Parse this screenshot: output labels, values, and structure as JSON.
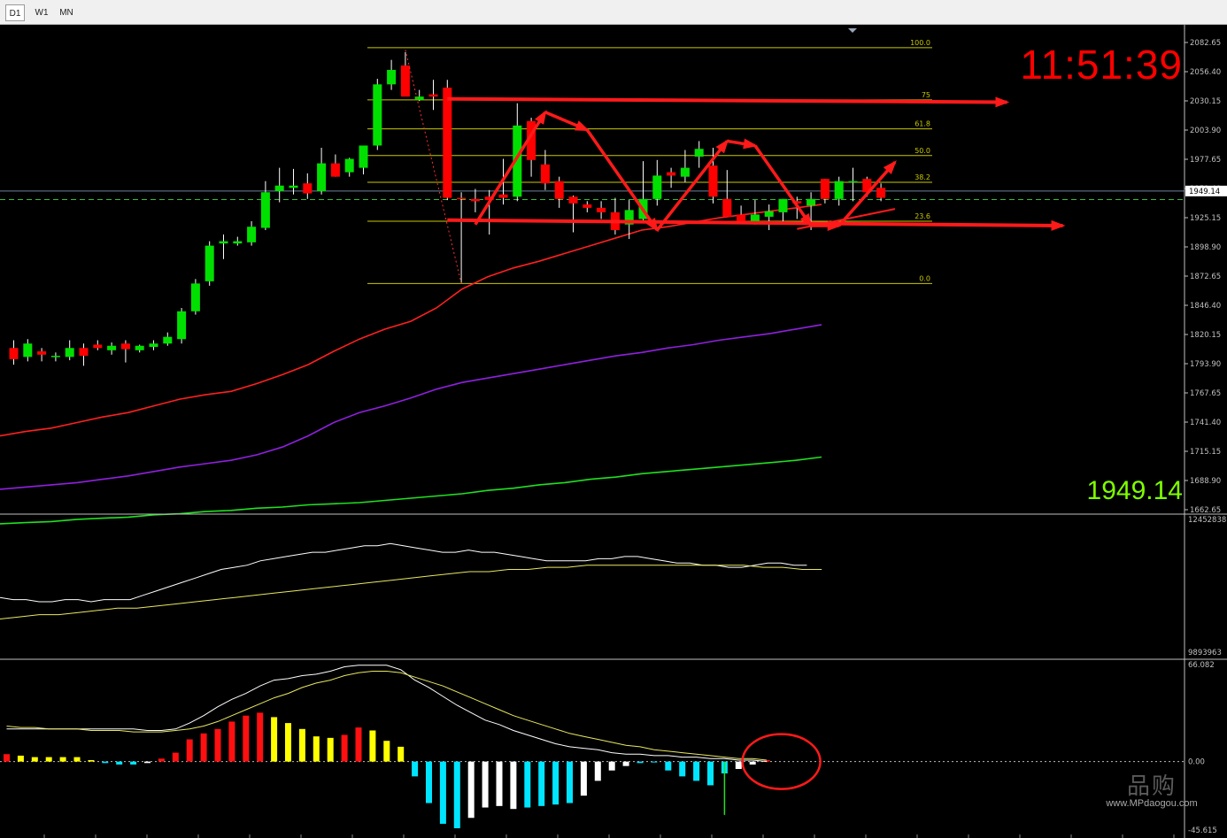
{
  "timeframe_tabs": [
    "D1",
    "W1",
    "MN"
  ],
  "active_tab": "D1",
  "clock": "11:51:39",
  "big_price": "1949.14",
  "watermark": {
    "logo": "品购",
    "url": "www.MPdaogou.com"
  },
  "colors": {
    "background": "#000000",
    "bull": "#00e000",
    "bear": "#ff0000",
    "fib": "#c8c800",
    "ma_short": "#ff2020",
    "ma_mid": "#9020e0",
    "ma_long": "#20e020",
    "annotation": "#ff1a1a",
    "macd_red": "#ff1010",
    "macd_yellow": "#ffff00",
    "macd_cyan": "#00e5ff",
    "macd_white": "#ffffff",
    "grid_text": "#c0c0c0"
  },
  "chart_data": [
    {
      "type": "candlestick",
      "price_axis_labels": [
        "2082.65",
        "2056.40",
        "2030.15",
        "2003.90",
        "1977.65",
        "1951.40",
        "1925.15",
        "1898.90",
        "1872.65",
        "1846.40",
        "1820.15",
        "1793.90",
        "1767.65",
        "1741.40",
        "1715.15",
        "1688.90",
        "1662.65"
      ],
      "ylim": [
        1662.65,
        2082.65
      ],
      "current_price": "1949.14",
      "current_price_value": 1949.14,
      "bid_line": 1941.5,
      "candles": [
        [
          1808,
          1815,
          1793,
          1798
        ],
        [
          1800,
          1816,
          1796,
          1812
        ],
        [
          1805,
          1808,
          1796,
          1802
        ],
        [
          1800,
          1804,
          1796,
          1801
        ],
        [
          1800,
          1815,
          1797,
          1808
        ],
        [
          1808,
          1812,
          1792,
          1801
        ],
        [
          1811,
          1815,
          1806,
          1808
        ],
        [
          1806,
          1813,
          1802,
          1810
        ],
        [
          1812,
          1815,
          1795,
          1807
        ],
        [
          1806,
          1811,
          1804,
          1810
        ],
        [
          1809,
          1815,
          1806,
          1812
        ],
        [
          1812,
          1822,
          1810,
          1818
        ],
        [
          1816,
          1844,
          1812,
          1841
        ],
        [
          1841,
          1870,
          1838,
          1866
        ],
        [
          1868,
          1904,
          1864,
          1900
        ],
        [
          1902,
          1910,
          1888,
          1904
        ],
        [
          1902,
          1908,
          1900,
          1904
        ],
        [
          1903,
          1922,
          1900,
          1917
        ],
        [
          1916,
          1958,
          1914,
          1948
        ],
        [
          1949,
          1970,
          1939,
          1954
        ],
        [
          1952,
          1969,
          1946,
          1954
        ],
        [
          1956,
          1965,
          1942,
          1947
        ],
        [
          1949,
          1988,
          1946,
          1974
        ],
        [
          1974,
          1982,
          1962,
          1962
        ],
        [
          1966,
          1979,
          1962,
          1978
        ],
        [
          1970,
          1988,
          1964,
          1990
        ],
        [
          1990,
          2050,
          1986,
          2045
        ],
        [
          2045,
          2067,
          2040,
          2058
        ],
        [
          2062,
          2074,
          2036,
          2034
        ],
        [
          2031,
          2040,
          2030,
          2034
        ],
        [
          2036,
          2049,
          2022,
          2034
        ],
        [
          2042,
          2049,
          1941,
          1943
        ],
        [
          1943,
          1948,
          1866,
          1942
        ],
        [
          1942,
          1951,
          1930,
          1940
        ],
        [
          1944,
          1950,
          1910,
          1941
        ],
        [
          1946,
          1978,
          1937,
          1943
        ],
        [
          1944,
          2028,
          1940,
          2008
        ],
        [
          2012,
          2015,
          1962,
          1977
        ],
        [
          1973,
          1986,
          1950,
          1956
        ],
        [
          1958,
          1962,
          1934,
          1942
        ],
        [
          1944,
          1945,
          1912,
          1938
        ],
        [
          1937,
          1940,
          1930,
          1934
        ],
        [
          1934,
          1940,
          1924,
          1930
        ],
        [
          1930,
          1943,
          1910,
          1914
        ],
        [
          1919,
          1941,
          1906,
          1932
        ],
        [
          1924,
          1976,
          1920,
          1942
        ],
        [
          1942,
          1977,
          1936,
          1963
        ],
        [
          1966,
          1970,
          1952,
          1963
        ],
        [
          1962,
          1986,
          1957,
          1970
        ],
        [
          1980,
          1994,
          1970,
          1987
        ],
        [
          1972,
          1988,
          1938,
          1944
        ],
        [
          1942,
          1968,
          1926,
          1926
        ],
        [
          1928,
          1936,
          1922,
          1920
        ],
        [
          1921,
          1941,
          1919,
          1928
        ],
        [
          1926,
          1937,
          1914,
          1931
        ],
        [
          1930,
          1942,
          1920,
          1942
        ],
        [
          1940,
          1944,
          1924,
          1938
        ],
        [
          1936,
          1948,
          1914,
          1942
        ],
        [
          1960,
          1960,
          1938,
          1942
        ],
        [
          1942,
          1962,
          1936,
          1958
        ],
        [
          1958,
          1970,
          1940,
          1958
        ],
        [
          1960,
          1962,
          1944,
          1948
        ],
        [
          1952,
          1956,
          1940,
          1943
        ]
      ],
      "ma_short": [
        1729,
        1733,
        1736,
        1741,
        1746,
        1750,
        1756,
        1762,
        1766,
        1769,
        1776,
        1784,
        1793,
        1805,
        1816,
        1825,
        1832,
        1844,
        1861,
        1872,
        1880,
        1886,
        1893,
        1900,
        1907,
        1914,
        1917,
        1921,
        1925,
        1928,
        1931,
        1934,
        1937
      ],
      "ma_mid": [
        1681,
        1683,
        1685,
        1687,
        1690,
        1693,
        1697,
        1701,
        1704,
        1707,
        1712,
        1719,
        1729,
        1741,
        1750,
        1756,
        1763,
        1771,
        1777,
        1781,
        1785,
        1789,
        1793,
        1797,
        1801,
        1804,
        1808,
        1811,
        1815,
        1818,
        1821,
        1825,
        1829
      ],
      "ma_long": [
        1650,
        1651,
        1652,
        1654,
        1655,
        1656,
        1658,
        1659,
        1661,
        1662,
        1664,
        1665,
        1667,
        1668,
        1669,
        1671,
        1673,
        1675,
        1677,
        1680,
        1682,
        1685,
        1687,
        1690,
        1692,
        1695,
        1697,
        1699,
        1701,
        1703,
        1705,
        1707,
        1710
      ],
      "fibonacci_levels": [
        {
          "label": "100.0",
          "price": 2078
        },
        {
          "label": "75",
          "price": 2031
        },
        {
          "label": "61.8",
          "price": 2005
        },
        {
          "label": "50.0",
          "price": 1981
        },
        {
          "label": "38.2",
          "price": 1957
        },
        {
          "label": "23.6",
          "price": 1922
        },
        {
          "label": "0.0",
          "price": 1866
        }
      ],
      "horizontal_arrows": [
        {
          "from": [
            31,
            2032
          ],
          "to": [
            71,
            2029
          ]
        },
        {
          "from": [
            31,
            1923
          ],
          "to": [
            75,
            1918
          ]
        }
      ],
      "zigzag": [
        [
          33,
          1919
        ],
        [
          38,
          2020
        ],
        [
          41,
          2004
        ],
        [
          46,
          1914
        ],
        [
          51,
          1994
        ],
        [
          53,
          1990
        ],
        [
          57,
          1918
        ],
        [
          59,
          1918
        ],
        [
          63,
          1975
        ]
      ],
      "dashed_drop": {
        "from": [
          28,
          2076
        ],
        "to": [
          32,
          1866
        ]
      },
      "slope_line": {
        "from": [
          56,
          1915
        ],
        "to": [
          63,
          1933
        ]
      }
    },
    {
      "type": "line",
      "axis_labels": [
        "12452838",
        "9893963"
      ],
      "ylim": [
        9893963,
        12452838
      ],
      "series": [
        {
          "values": [
            65,
            64,
            64,
            63,
            63,
            64,
            64,
            63,
            64,
            64,
            64,
            66,
            68,
            70,
            72,
            74,
            76,
            78,
            79,
            80,
            82,
            83,
            84,
            85,
            86,
            86,
            87,
            88,
            89,
            89,
            90,
            89,
            88,
            87,
            86,
            86,
            87,
            86,
            86,
            85,
            84,
            83,
            82,
            82,
            82,
            82,
            83,
            83,
            84,
            84,
            83,
            82,
            81,
            81,
            80,
            80,
            79,
            79,
            80,
            81,
            81,
            80,
            80
          ]
        },
        {
          "values": [
            55,
            56,
            57,
            57,
            58,
            59,
            60,
            60,
            61,
            62,
            63,
            64,
            65,
            66,
            67,
            68,
            69,
            70,
            71,
            72,
            73,
            74,
            75,
            76,
            77,
            77,
            78,
            78,
            79,
            79,
            80,
            80,
            80,
            80,
            80,
            80,
            80,
            80,
            80,
            79,
            79,
            78,
            78
          ]
        }
      ]
    },
    {
      "type": "bar",
      "axis_labels": [
        "66.082",
        "0.00",
        "-45.615"
      ],
      "ylim": [
        -45.615,
        66.082
      ],
      "histogram": [
        {
          "v": 5,
          "c": "red"
        },
        {
          "v": 4,
          "c": "yellow"
        },
        {
          "v": 3,
          "c": "yellow"
        },
        {
          "v": 3,
          "c": "yellow"
        },
        {
          "v": 3,
          "c": "yellow"
        },
        {
          "v": 3,
          "c": "yellow"
        },
        {
          "v": 1,
          "c": "yellow"
        },
        {
          "v": -1,
          "c": "cyan"
        },
        {
          "v": -2,
          "c": "cyan"
        },
        {
          "v": -2,
          "c": "cyan"
        },
        {
          "v": -1,
          "c": "white"
        },
        {
          "v": 2,
          "c": "red"
        },
        {
          "v": 6,
          "c": "red"
        },
        {
          "v": 15,
          "c": "red"
        },
        {
          "v": 19,
          "c": "red"
        },
        {
          "v": 22,
          "c": "red"
        },
        {
          "v": 27,
          "c": "red"
        },
        {
          "v": 31,
          "c": "red"
        },
        {
          "v": 33,
          "c": "red"
        },
        {
          "v": 30,
          "c": "yellow"
        },
        {
          "v": 26,
          "c": "yellow"
        },
        {
          "v": 22,
          "c": "yellow"
        },
        {
          "v": 17,
          "c": "yellow"
        },
        {
          "v": 16,
          "c": "yellow"
        },
        {
          "v": 18,
          "c": "red"
        },
        {
          "v": 23,
          "c": "red"
        },
        {
          "v": 21,
          "c": "yellow"
        },
        {
          "v": 14,
          "c": "yellow"
        },
        {
          "v": 10,
          "c": "yellow"
        },
        {
          "v": -10,
          "c": "cyan"
        },
        {
          "v": -28,
          "c": "cyan"
        },
        {
          "v": -42,
          "c": "cyan"
        },
        {
          "v": -45,
          "c": "cyan"
        },
        {
          "v": -38,
          "c": "white"
        },
        {
          "v": -31,
          "c": "white"
        },
        {
          "v": -30,
          "c": "white"
        },
        {
          "v": -32,
          "c": "white"
        },
        {
          "v": -31,
          "c": "cyan"
        },
        {
          "v": -30,
          "c": "cyan"
        },
        {
          "v": -29,
          "c": "cyan"
        },
        {
          "v": -28,
          "c": "cyan"
        },
        {
          "v": -23,
          "c": "white"
        },
        {
          "v": -13,
          "c": "white"
        },
        {
          "v": -6,
          "c": "white"
        },
        {
          "v": -3,
          "c": "white"
        },
        {
          "v": -1,
          "c": "cyan"
        },
        {
          "v": 0,
          "c": "cyan"
        },
        {
          "v": -6,
          "c": "cyan"
        },
        {
          "v": -10,
          "c": "cyan"
        },
        {
          "v": -13,
          "c": "cyan"
        },
        {
          "v": -16,
          "c": "cyan"
        },
        {
          "v": -8,
          "c": "cyan"
        },
        {
          "v": -5,
          "c": "white"
        },
        {
          "v": -2,
          "c": "white"
        },
        {
          "v": 1,
          "c": "red"
        }
      ],
      "main_line": [
        22,
        22,
        22,
        22,
        22,
        22,
        22,
        22,
        22,
        22,
        21,
        21,
        22,
        26,
        31,
        37,
        42,
        46,
        51,
        55,
        56,
        58,
        59,
        61,
        64,
        65,
        65,
        65,
        62,
        55,
        50,
        44,
        38,
        33,
        28,
        25,
        21,
        18,
        15,
        12,
        10,
        9,
        8,
        6,
        5,
        5,
        4,
        4,
        3,
        3,
        2,
        2,
        1,
        1,
        0
      ],
      "signal_line": [
        24,
        23,
        23,
        22,
        22,
        22,
        21,
        21,
        21,
        20,
        20,
        20,
        21,
        22,
        24,
        27,
        31,
        35,
        39,
        43,
        46,
        50,
        53,
        55,
        58,
        60,
        61,
        61,
        60,
        57,
        54,
        51,
        47,
        43,
        39,
        35,
        31,
        28,
        25,
        22,
        19,
        17,
        15,
        13,
        11,
        10,
        8,
        7,
        6,
        5,
        4,
        3,
        2,
        2,
        1
      ],
      "highlight_circle": {
        "index": 54,
        "value": 0
      }
    }
  ]
}
